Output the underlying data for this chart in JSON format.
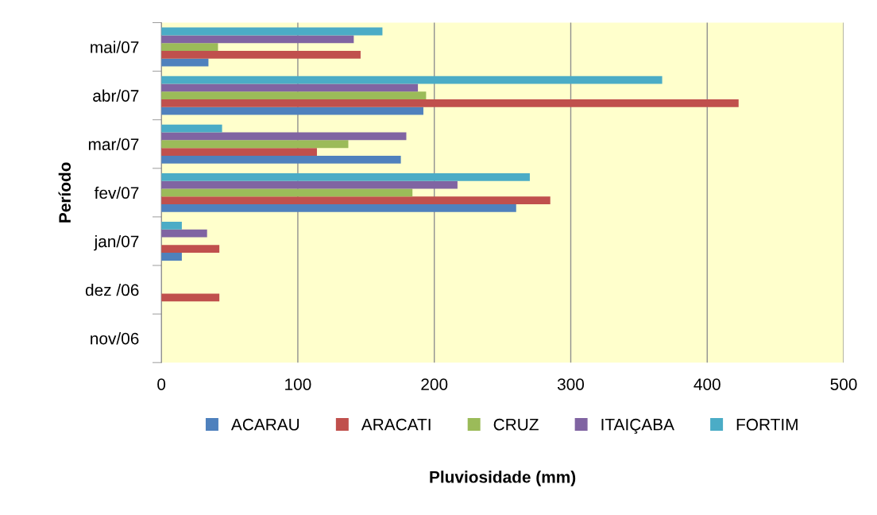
{
  "chart_data": {
    "type": "bar",
    "orientation": "horizontal",
    "xlabel": "Pluviosidade (mm)",
    "ylabel": "Período",
    "categories": [
      "mai/07",
      "abr/07",
      "mar/07",
      "fev/07",
      "jan/07",
      "dez /06",
      "nov/06"
    ],
    "series": [
      {
        "name": "ACARAU",
        "color": "#4f81bd",
        "values": [
          34.5,
          192,
          175.5,
          260,
          15,
          0,
          0
        ]
      },
      {
        "name": "ARACATI",
        "color": "#c0504d",
        "values": [
          146,
          423,
          114,
          285,
          42.5,
          42.5,
          0
        ]
      },
      {
        "name": "CRUZ",
        "color": "#9bbb59",
        "values": [
          41.5,
          194,
          137,
          184,
          0,
          0,
          0
        ]
      },
      {
        "name": "ITAIÇABA",
        "color": "#8064a2",
        "values": [
          141,
          188,
          179.5,
          217,
          33.5,
          0,
          0
        ]
      },
      {
        "name": "FORTIM",
        "color": "#4bacc6",
        "values": [
          162,
          367,
          44.5,
          270,
          15,
          0,
          0
        ]
      }
    ],
    "xlim": [
      0,
      500
    ],
    "xticks": [
      0,
      100,
      200,
      300,
      400,
      500
    ],
    "grid": "x",
    "legend": "bottom"
  }
}
